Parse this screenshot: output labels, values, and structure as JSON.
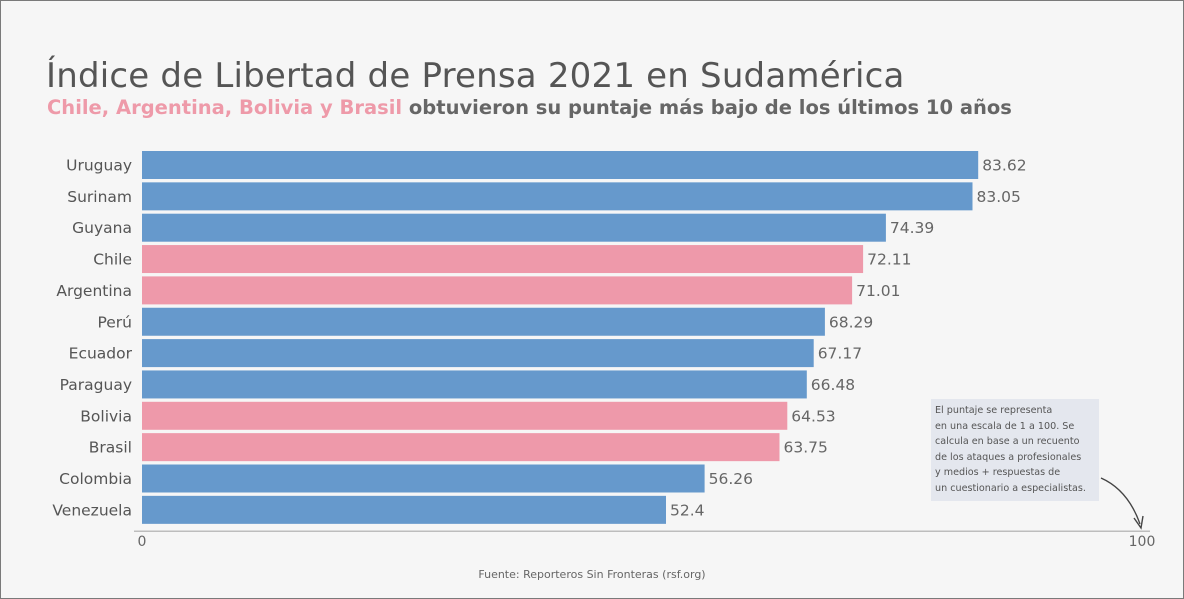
{
  "header": {
    "title": "Índice de Libertad de Prensa 2021 en Sudamérica",
    "subtitle_highlight": "Chile, Argentina, Bolivia y Brasil",
    "subtitle_rest": "obtuvieron su puntaje más bajo de los últimos 10 años"
  },
  "chart_data": {
    "type": "bar",
    "orientation": "horizontal",
    "title": "Índice de Libertad de Prensa 2021 en Sudamérica",
    "categories": [
      "Uruguay",
      "Surinam",
      "Guyana",
      "Chile",
      "Argentina",
      "Perú",
      "Ecuador",
      "Paraguay",
      "Bolivia",
      "Brasil",
      "Colombia",
      "Venezuela"
    ],
    "values": [
      83.62,
      83.05,
      74.39,
      72.11,
      71.01,
      68.29,
      67.17,
      66.48,
      64.53,
      63.75,
      56.26,
      52.4
    ],
    "value_labels": [
      "83.62",
      "83.05",
      "74.39",
      "72.11",
      "71.01",
      "68.29",
      "67.17",
      "66.48",
      "64.53",
      "63.75",
      "56.26",
      "52.4"
    ],
    "highlighted": [
      "Chile",
      "Argentina",
      "Bolivia",
      "Brasil"
    ],
    "xlim": [
      0,
      100
    ],
    "x_ticks": [
      0,
      100
    ],
    "x_tick_labels": [
      "0",
      "100"
    ],
    "xlabel": "",
    "ylabel": "",
    "grid": false
  },
  "colors": {
    "default_bar": "#6699cc",
    "highlight_bar": "#ee99aa",
    "highlight_text": "#ee9aa9"
  },
  "note": {
    "lines": [
      "El puntaje se representa",
      "en una escala de 1 a 100. Se",
      "calcula en base a un recuento",
      "de los ataques a profesionales",
      "y medios + respuestas de",
      "un cuestionario a especialistas."
    ]
  },
  "source": "Fuente: Reporteros Sin Fronteras (rsf.org)"
}
